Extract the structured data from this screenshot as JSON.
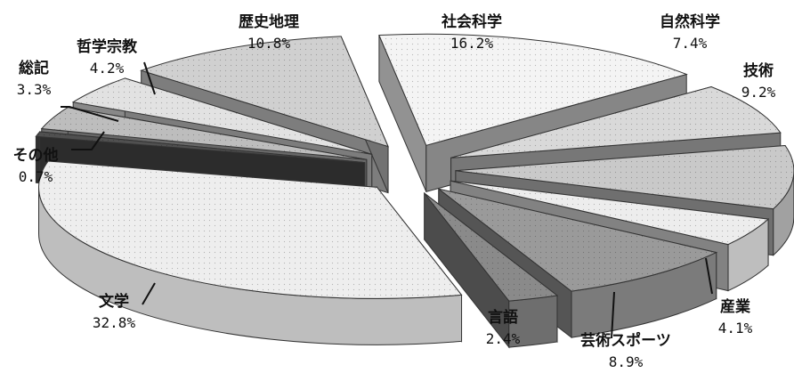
{
  "chart_data": {
    "type": "pie",
    "title": "",
    "style": "3d-exploded",
    "unit": "%",
    "slices": [
      {
        "label": "社会科学",
        "value": 16.2,
        "value_text": "16.2%",
        "color": "#f4f4f4"
      },
      {
        "label": "自然科学",
        "value": 7.4,
        "value_text": "7.4%",
        "color": "#d9d9d9"
      },
      {
        "label": "技術",
        "value": 9.2,
        "value_text": "9.2%",
        "color": "#c9c9c9"
      },
      {
        "label": "産業",
        "value": 4.1,
        "value_text": "4.1%",
        "color": "#ededed"
      },
      {
        "label": "芸術スポーツ",
        "value": 8.9,
        "value_text": "8.9%",
        "color": "#9a9a9a"
      },
      {
        "label": "言語",
        "value": 2.4,
        "value_text": "2.4%",
        "color": "#8a8a8a"
      },
      {
        "label": "文学",
        "value": 32.8,
        "value_text": "32.8%",
        "color": "#eeeeee"
      },
      {
        "label": "その他",
        "value": 0.7,
        "value_text": "0.7%",
        "color": "#505050"
      },
      {
        "label": "総記",
        "value": 3.3,
        "value_text": "3.3%",
        "color": "#bdbdbd"
      },
      {
        "label": "哲学宗教",
        "value": 4.2,
        "value_text": "4.2%",
        "color": "#e2e2e2"
      },
      {
        "label": "歴史地理",
        "value": 10.8,
        "value_text": "10.8%",
        "color": "#d0d0d0"
      }
    ]
  }
}
